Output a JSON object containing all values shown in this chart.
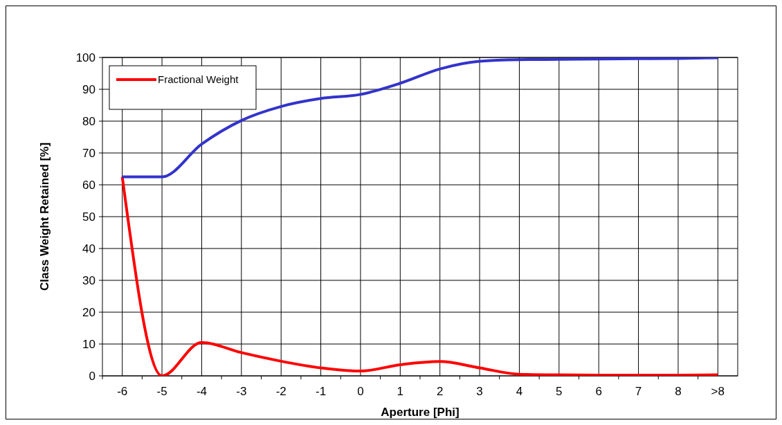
{
  "chart_data": {
    "type": "line",
    "xlabel": "Aperture [Phi]",
    "ylabel": "Class Weight Retained [%]",
    "categories": [
      "-6",
      "-5",
      "-4",
      "-3",
      "-2",
      "-1",
      "0",
      "1",
      "2",
      "3",
      "4",
      "5",
      "6",
      "7",
      "8",
      ">8"
    ],
    "series": [
      {
        "name": "Fractional Weight",
        "color": "#ff0000",
        "values": [
          62.5,
          0,
          10.5,
          7.3,
          4.6,
          2.5,
          1.5,
          3.5,
          4.5,
          2.5,
          0.5,
          0.3,
          0.2,
          0.2,
          0.2,
          0.3
        ]
      },
      {
        "color": "#3333cc",
        "values": [
          62.5,
          62.5,
          72.8,
          80.2,
          84.6,
          87.1,
          88.4,
          91.9,
          96.4,
          98.8,
          99.3,
          99.4,
          99.5,
          99.6,
          99.7,
          99.9
        ]
      }
    ],
    "ylim": [
      0,
      100
    ],
    "yticks": [
      0,
      10,
      20,
      30,
      40,
      50,
      60,
      70,
      80,
      90,
      100
    ],
    "grid": true,
    "legend": "top left",
    "line_style": "solid",
    "marker": "none"
  }
}
